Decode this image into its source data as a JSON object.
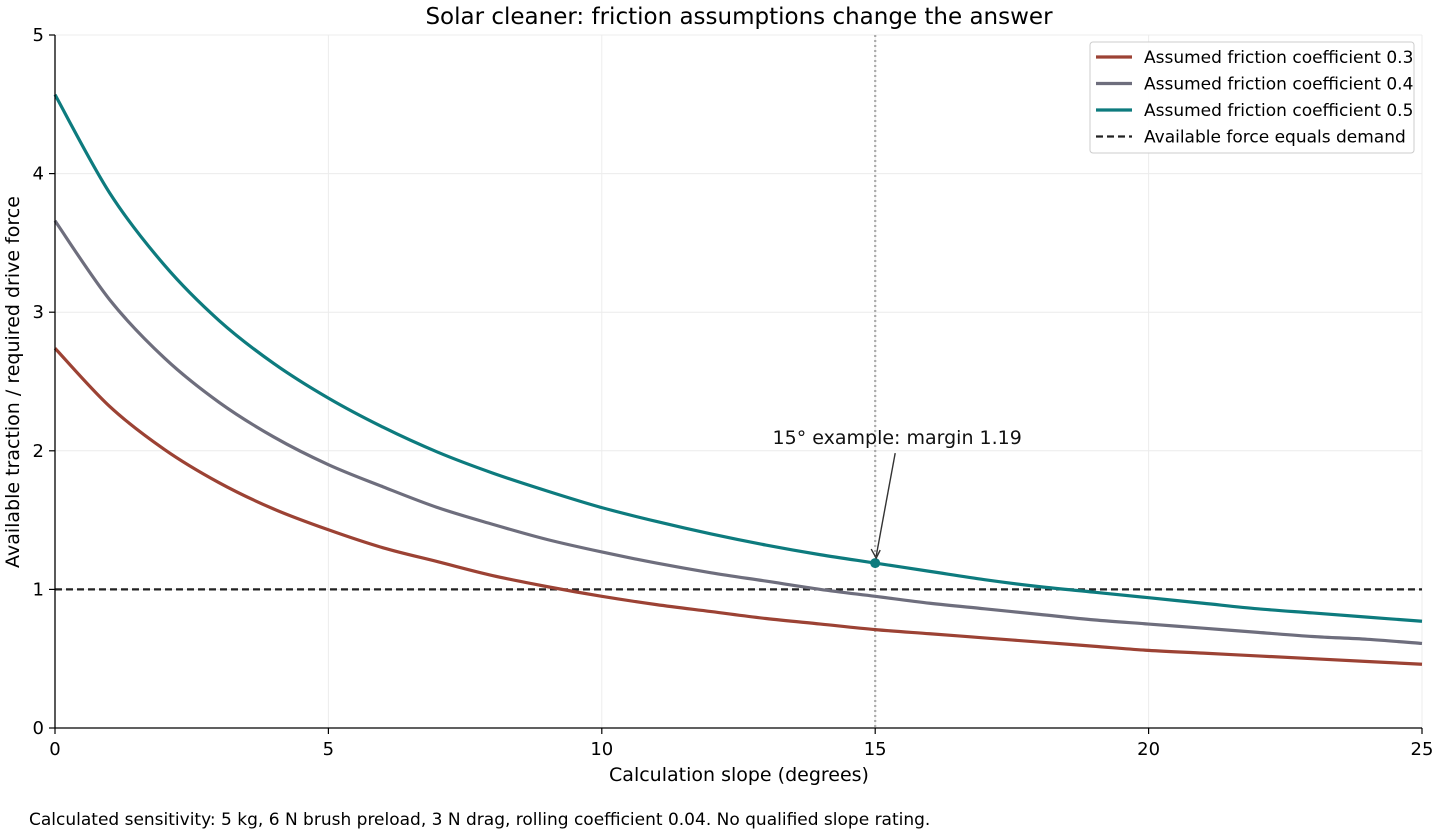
{
  "chart_data": {
    "type": "line",
    "title": "Solar cleaner: friction assumptions change the answer",
    "xlabel": "Calculation slope (degrees)",
    "ylabel": "Available traction / required drive force",
    "xlim": [
      0,
      25
    ],
    "ylim": [
      0,
      5
    ],
    "xticks": [
      0,
      5,
      10,
      15,
      20,
      25
    ],
    "yticks": [
      0,
      1,
      2,
      3,
      4,
      5
    ],
    "grid": true,
    "legend_position": "top-right",
    "x": [
      0,
      1,
      2,
      3,
      4,
      5,
      6,
      7,
      8,
      9,
      10,
      11,
      12,
      13,
      14,
      15,
      16,
      17,
      18,
      19,
      20,
      21,
      22,
      23,
      24,
      25
    ],
    "series": [
      {
        "name": "Assumed friction coefficient 0.3",
        "color": "#9c4234",
        "values": [
          2.74,
          2.32,
          2.01,
          1.77,
          1.58,
          1.43,
          1.3,
          1.2,
          1.1,
          1.02,
          0.95,
          0.89,
          0.84,
          0.79,
          0.75,
          0.71,
          0.68,
          0.65,
          0.62,
          0.59,
          0.56,
          0.54,
          0.52,
          0.5,
          0.48,
          0.46
        ]
      },
      {
        "name": "Assumed friction coefficient 0.4",
        "color": "#6e6e7d",
        "values": [
          3.66,
          3.09,
          2.67,
          2.35,
          2.1,
          1.9,
          1.74,
          1.59,
          1.47,
          1.36,
          1.27,
          1.19,
          1.12,
          1.06,
          1.0,
          0.95,
          0.9,
          0.86,
          0.82,
          0.78,
          0.75,
          0.72,
          0.69,
          0.66,
          0.64,
          0.61
        ]
      },
      {
        "name": "Assumed friction coefficient 0.5",
        "color": "#0d7b7e",
        "values": [
          4.57,
          3.86,
          3.34,
          2.94,
          2.63,
          2.38,
          2.17,
          1.99,
          1.84,
          1.71,
          1.59,
          1.49,
          1.4,
          1.32,
          1.25,
          1.19,
          1.13,
          1.07,
          1.02,
          0.98,
          0.94,
          0.9,
          0.86,
          0.83,
          0.8,
          0.77
        ]
      }
    ],
    "reference_lines": [
      {
        "type": "horizontal",
        "y": 1,
        "style": "dashed",
        "color": "#222222",
        "name": "Available force equals demand"
      },
      {
        "type": "vertical",
        "x": 15,
        "style": "dotted",
        "color": "#aaaaaa"
      }
    ],
    "annotation": {
      "text": "15° example: margin 1.19",
      "point": {
        "x": 15,
        "y": 1.19
      },
      "series_color": "#0d7b7e"
    }
  },
  "footnote": "Calculated sensitivity: 5 kg, 6 N brush preload, 3 N drag, rolling coefficient 0.04. No qualified slope rating."
}
